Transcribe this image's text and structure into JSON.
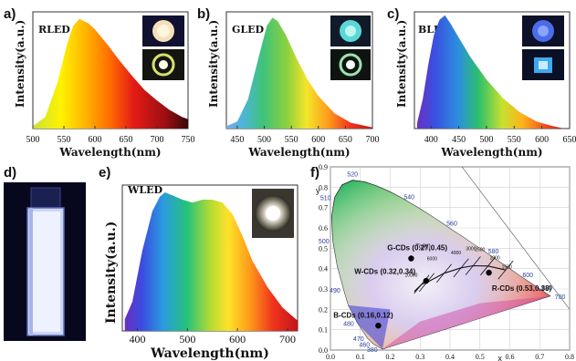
{
  "panels": {
    "a": {
      "letter": "a)",
      "title": "RLED"
    },
    "b": {
      "letter": "b)",
      "title": "GLED"
    },
    "c": {
      "letter": "c)",
      "title": "BLED"
    },
    "d": {
      "letter": "d)"
    },
    "e": {
      "letter": "e)",
      "title": "WLED"
    },
    "f": {
      "letter": "f)"
    }
  },
  "axis": {
    "ylabel": "Intensity(a.u.)",
    "xlabel": "Wavelength(nm)"
  },
  "cie": {
    "xlabel": "x",
    "ylabel": "y",
    "tcp_label": "Tc(K)"
  },
  "chart_data": [
    {
      "id": "a",
      "type": "area",
      "title": "RLED",
      "xlabel": "Wavelength(nm)",
      "ylabel": "Intensity(a.u.)",
      "xlim": [
        500,
        750
      ],
      "xticks": [
        500,
        550,
        600,
        650,
        700,
        750
      ],
      "x": [
        500,
        520,
        540,
        555,
        565,
        575,
        590,
        600,
        620,
        640,
        660,
        680,
        700,
        720,
        740,
        750
      ],
      "values": [
        0.02,
        0.1,
        0.4,
        0.72,
        0.88,
        0.94,
        0.9,
        0.85,
        0.72,
        0.58,
        0.45,
        0.33,
        0.24,
        0.16,
        0.1,
        0.08
      ]
    },
    {
      "id": "b",
      "type": "area",
      "title": "GLED",
      "xlabel": "Wavelength(nm)",
      "ylabel": "Intensity(a.u.)",
      "xlim": [
        430,
        700
      ],
      "xticks": [
        450,
        500,
        550,
        600,
        650,
        700
      ],
      "x": [
        430,
        450,
        470,
        490,
        505,
        515,
        525,
        540,
        560,
        580,
        600,
        630,
        660,
        700
      ],
      "values": [
        0.02,
        0.06,
        0.25,
        0.62,
        0.88,
        0.95,
        0.92,
        0.8,
        0.6,
        0.42,
        0.28,
        0.13,
        0.05,
        0.01
      ]
    },
    {
      "id": "c",
      "type": "area",
      "title": "BLED",
      "xlabel": "Wavelength(nm)",
      "ylabel": "Intensity(a.u.)",
      "xlim": [
        370,
        650
      ],
      "xticks": [
        400,
        450,
        500,
        550,
        600,
        650
      ],
      "x": [
        375,
        385,
        395,
        405,
        415,
        425,
        435,
        450,
        470,
        500,
        530,
        560,
        590,
        620,
        640
      ],
      "values": [
        0.05,
        0.25,
        0.55,
        0.8,
        0.93,
        0.97,
        0.9,
        0.78,
        0.62,
        0.42,
        0.26,
        0.14,
        0.06,
        0.02,
        0.0
      ]
    },
    {
      "id": "e",
      "type": "area",
      "title": "WLED",
      "xlabel": "Wavelength(nm)",
      "ylabel": "Intensity(a.u.)",
      "xlim": [
        370,
        720
      ],
      "xticks": [
        400,
        500,
        600,
        700
      ],
      "x": [
        375,
        390,
        410,
        430,
        445,
        455,
        470,
        490,
        510,
        530,
        550,
        570,
        590,
        610,
        630,
        660,
        690,
        720
      ],
      "values": [
        0.08,
        0.2,
        0.55,
        0.82,
        0.92,
        0.95,
        0.93,
        0.9,
        0.88,
        0.9,
        0.9,
        0.88,
        0.8,
        0.65,
        0.48,
        0.3,
        0.16,
        0.07
      ]
    },
    {
      "id": "f",
      "type": "scatter",
      "title": "",
      "xlabel": "x",
      "ylabel": "y",
      "xlim": [
        0.0,
        0.8
      ],
      "ylim": [
        0.0,
        0.9
      ],
      "xticks": [
        "0.0",
        "0.1",
        "0.2",
        "0.3",
        "0.4",
        "0.5",
        "0.6",
        "0.7",
        "0.8"
      ],
      "yticks": [
        "0.0",
        "0.1",
        "0.2",
        "0.3",
        "0.4",
        "0.5",
        "0.6",
        "0.7",
        "0.8",
        "0.9"
      ],
      "points": [
        {
          "label": "G-CDs (0.27,0.45)",
          "x": 0.27,
          "y": 0.45
        },
        {
          "label": "W-CDs (0.32,0.34)",
          "x": 0.32,
          "y": 0.34
        },
        {
          "label": "R-CDs (0.53,0.38)",
          "x": 0.53,
          "y": 0.38
        },
        {
          "label": "B-CDs (0.16,0.12)",
          "x": 0.16,
          "y": 0.12
        }
      ],
      "wavelength_labels": [
        {
          "nm": "380",
          "x": 0.17,
          "y": 0.005
        },
        {
          "nm": "460",
          "x": 0.144,
          "y": 0.03
        },
        {
          "nm": "470",
          "x": 0.124,
          "y": 0.058
        },
        {
          "nm": "480",
          "x": 0.091,
          "y": 0.133
        },
        {
          "nm": "490",
          "x": 0.045,
          "y": 0.295
        },
        {
          "nm": "500",
          "x": 0.008,
          "y": 0.538
        },
        {
          "nm": "510",
          "x": 0.014,
          "y": 0.75
        },
        {
          "nm": "520",
          "x": 0.074,
          "y": 0.834
        },
        {
          "nm": "540",
          "x": 0.23,
          "y": 0.754
        },
        {
          "nm": "560",
          "x": 0.373,
          "y": 0.624
        },
        {
          "nm": "580",
          "x": 0.512,
          "y": 0.487
        },
        {
          "nm": "600",
          "x": 0.627,
          "y": 0.372
        },
        {
          "nm": "620",
          "x": 0.691,
          "y": 0.308
        },
        {
          "nm": "700",
          "x": 0.735,
          "y": 0.265
        }
      ],
      "planckian_temps": [
        "10000",
        "6000",
        "4000",
        "3000",
        "2500",
        "2000",
        "1500"
      ]
    }
  ]
}
